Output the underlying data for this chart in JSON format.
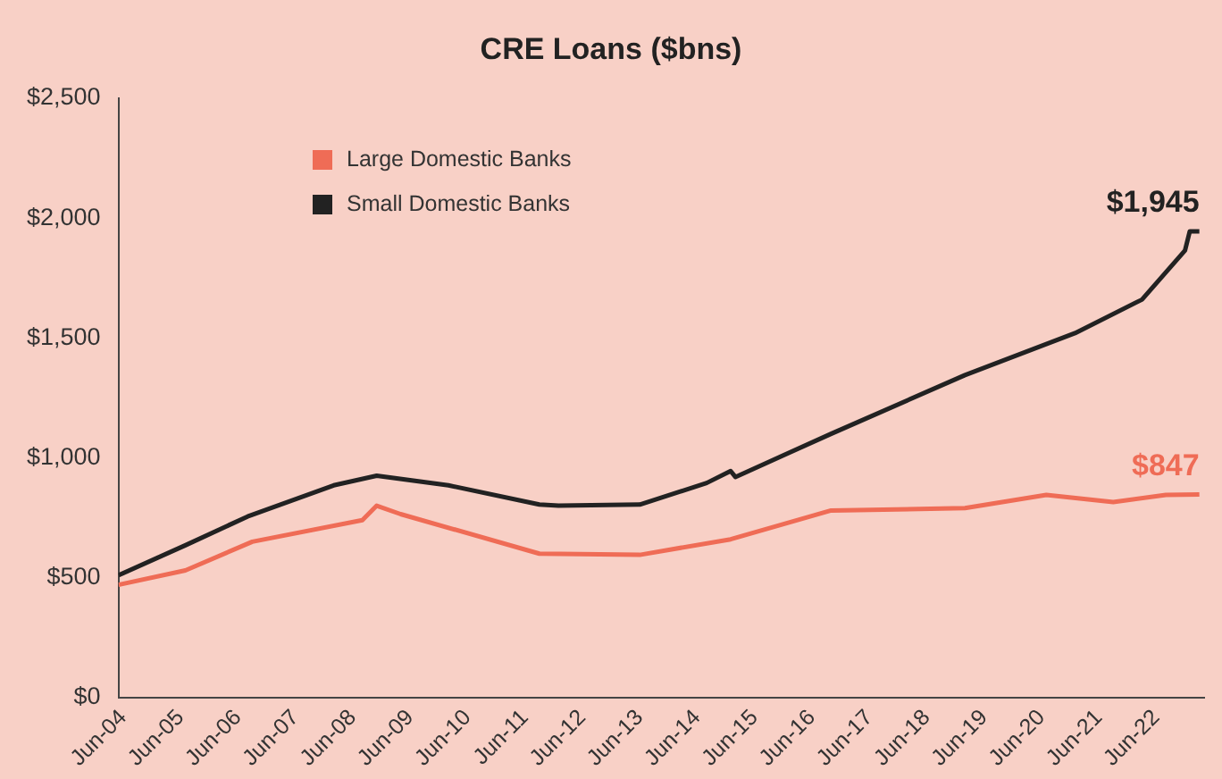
{
  "chart_data": {
    "type": "line",
    "title": "CRE Loans ($bns)",
    "xlim": [
      "2004-05",
      "2023-04"
    ],
    "xticks": [
      {
        "value": "2004-06",
        "label": "Jun-04"
      },
      {
        "value": "2005-06",
        "label": "Jun-05"
      },
      {
        "value": "2006-06",
        "label": "Jun-06"
      },
      {
        "value": "2007-06",
        "label": "Jun-07"
      },
      {
        "value": "2008-06",
        "label": "Jun-08"
      },
      {
        "value": "2009-06",
        "label": "Jun-09"
      },
      {
        "value": "2010-06",
        "label": "Jun-10"
      },
      {
        "value": "2011-06",
        "label": "Jun-11"
      },
      {
        "value": "2012-06",
        "label": "Jun-12"
      },
      {
        "value": "2013-06",
        "label": "Jun-13"
      },
      {
        "value": "2014-06",
        "label": "Jun-14"
      },
      {
        "value": "2015-06",
        "label": "Jun-15"
      },
      {
        "value": "2016-06",
        "label": "Jun-16"
      },
      {
        "value": "2017-06",
        "label": "Jun-17"
      },
      {
        "value": "2018-06",
        "label": "Jun-18"
      },
      {
        "value": "2019-06",
        "label": "Jun-19"
      },
      {
        "value": "2020-06",
        "label": "Jun-20"
      },
      {
        "value": "2021-06",
        "label": "Jun-21"
      },
      {
        "value": "2022-06",
        "label": "Jun-22"
      }
    ],
    "ylim": [
      0,
      2500
    ],
    "yticks": [
      {
        "value": 0,
        "label": "$0"
      },
      {
        "value": 500,
        "label": "$500"
      },
      {
        "value": 1000,
        "label": "$1,000"
      },
      {
        "value": 1500,
        "label": "$1,500"
      },
      {
        "value": 2000,
        "label": "$2,000"
      },
      {
        "value": 2500,
        "label": "$2,500"
      }
    ],
    "series": [
      {
        "name": "Large Domestic Banks",
        "color": "#ef6c56",
        "x": [
          "2004-05",
          "2005-07",
          "2006-09",
          "2008-08",
          "2008-11",
          "2009-04",
          "2011-09",
          "2013-06",
          "2015-01",
          "2016-10",
          "2019-02",
          "2020-07",
          "2021-09",
          "2022-08",
          "2023-03"
        ],
        "values": [
          470,
          530,
          650,
          740,
          800,
          765,
          600,
          595,
          660,
          780,
          790,
          845,
          815,
          845,
          847
        ]
      },
      {
        "name": "Small Domestic Banks",
        "color": "#222222",
        "x": [
          "2004-05",
          "2005-07",
          "2006-08",
          "2008-02",
          "2008-11",
          "2010-02",
          "2011-09",
          "2012-01",
          "2013-06",
          "2014-08",
          "2015-01",
          "2015-02",
          "2016-10",
          "2019-02",
          "2021-01",
          "2022-03",
          "2022-12",
          "2023-01",
          "2023-03"
        ],
        "values": [
          510,
          635,
          755,
          885,
          925,
          885,
          805,
          800,
          805,
          895,
          945,
          920,
          1100,
          1345,
          1520,
          1660,
          1865,
          1945,
          1945
        ]
      }
    ],
    "annotations": [
      {
        "text": "$847",
        "x": "2023-03",
        "y": 847
      },
      {
        "text": "$1,945",
        "x": "2023-03",
        "y": 1945
      }
    ],
    "grid": false,
    "legend": "top left",
    "marker": "none",
    "line_style": "solid"
  }
}
